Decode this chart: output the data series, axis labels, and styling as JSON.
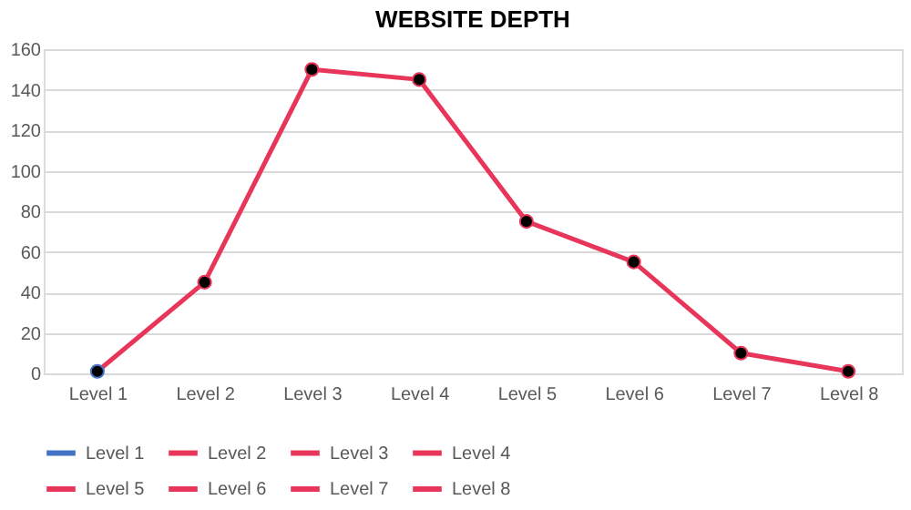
{
  "chart_data": {
    "type": "line",
    "title": "WEBSITE DEPTH",
    "categories": [
      "Level 1",
      "Level 2",
      "Level 3",
      "Level 4",
      "Level 5",
      "Level 6",
      "Level 7",
      "Level 8"
    ],
    "series": [
      {
        "color": "#e8365a",
        "marker": "none",
        "values": [
          1,
          45,
          150,
          145,
          75,
          55,
          10,
          1
        ]
      },
      {
        "type": "scatter",
        "name": "Level 1",
        "color": "#4472c4",
        "values": [
          1,
          null,
          null,
          null,
          null,
          null,
          null,
          null
        ]
      },
      {
        "type": "scatter",
        "name": "Level 2",
        "color": "#e8365a",
        "values": [
          null,
          45,
          null,
          null,
          null,
          null,
          null,
          null
        ]
      },
      {
        "type": "scatter",
        "name": "Level 3",
        "color": "#e8365a",
        "values": [
          null,
          null,
          150,
          null,
          null,
          null,
          null,
          null
        ]
      },
      {
        "type": "scatter",
        "name": "Level 4",
        "color": "#e8365a",
        "values": [
          null,
          null,
          null,
          145,
          null,
          null,
          null,
          null
        ]
      },
      {
        "type": "scatter",
        "name": "Level 5",
        "color": "#e8365a",
        "values": [
          null,
          null,
          null,
          null,
          75,
          null,
          null,
          null
        ]
      },
      {
        "type": "scatter",
        "name": "Level 6",
        "color": "#e8365a",
        "values": [
          null,
          null,
          null,
          null,
          null,
          55,
          null,
          null
        ]
      },
      {
        "type": "scatter",
        "name": "Level 7",
        "color": "#e8365a",
        "values": [
          null,
          null,
          null,
          null,
          null,
          null,
          10,
          null
        ]
      },
      {
        "type": "scatter",
        "name": "Level 8",
        "color": "#e8365a",
        "values": [
          null,
          null,
          null,
          null,
          null,
          null,
          null,
          1
        ]
      }
    ],
    "marker": "circle",
    "line_style": "solid",
    "ylim": [
      0,
      160
    ],
    "yticks": [
      0,
      20,
      40,
      60,
      80,
      100,
      120,
      140,
      160
    ],
    "grid": "y",
    "legend": "bottom"
  }
}
